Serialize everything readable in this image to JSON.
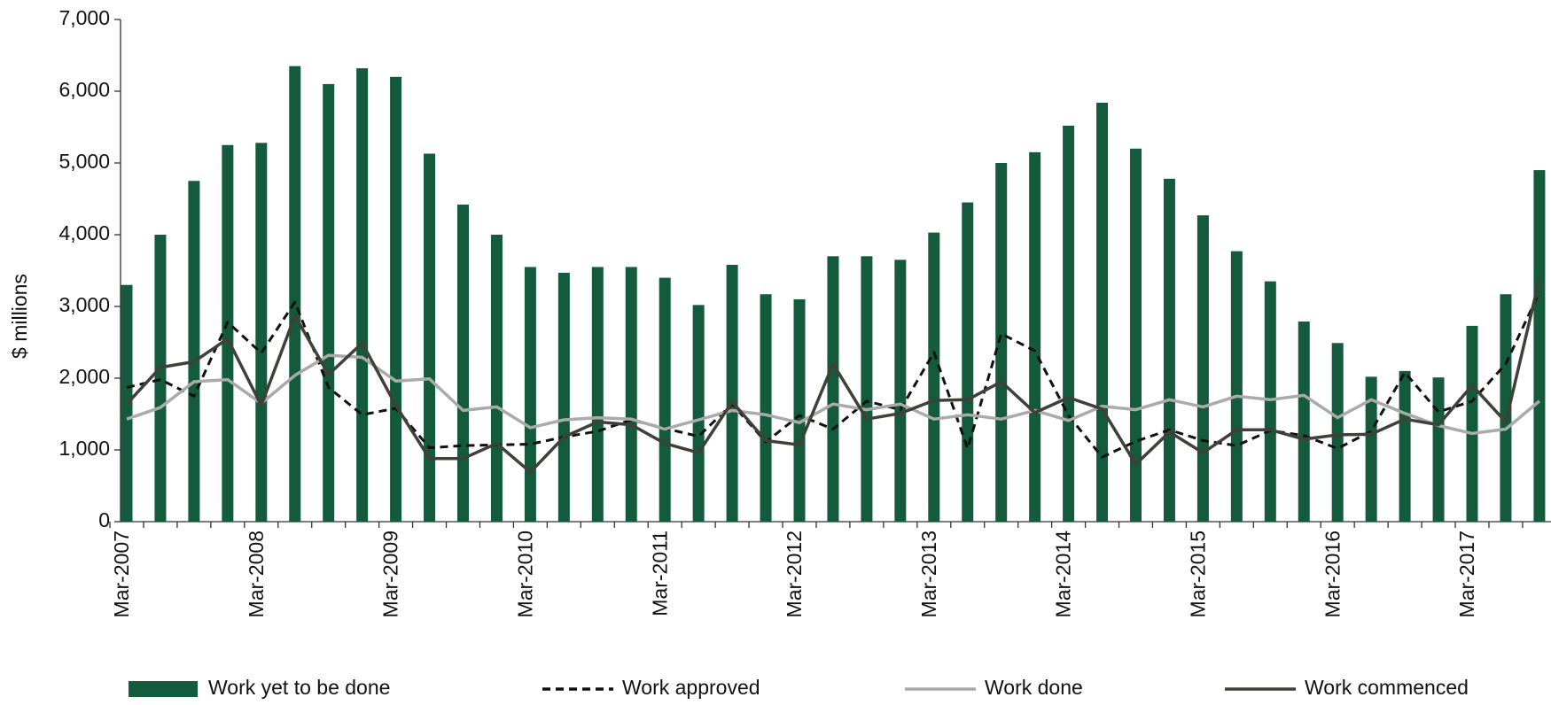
{
  "chart_data": {
    "type": "bar_line",
    "y_label": "$ millions",
    "categories": [
      "Mar-2007",
      null,
      null,
      null,
      "Mar-2008",
      null,
      null,
      null,
      "Mar-2009",
      null,
      null,
      null,
      "Mar-2010",
      null,
      null,
      null,
      "Mar-2011",
      null,
      null,
      null,
      "Mar-2012",
      null,
      null,
      null,
      "Mar-2013",
      null,
      null,
      null,
      "Mar-2014",
      null,
      null,
      null,
      "Mar-2015",
      null,
      null,
      null,
      "Mar-2016",
      null,
      null,
      null,
      "Mar-2017",
      null,
      null
    ],
    "ylim": [
      0,
      7000
    ],
    "yticks": [
      0,
      {
        "value": 1000,
        "label": "1,000"
      },
      {
        "value": 2000,
        "label": "2,000"
      },
      {
        "value": 3000,
        "label": "3,000"
      },
      {
        "value": 4000,
        "label": "4,000"
      },
      {
        "value": 5000,
        "label": "5,000"
      },
      {
        "value": 6000,
        "label": "6,000"
      },
      {
        "value": 7000,
        "label": "7,000"
      }
    ],
    "series": [
      {
        "name": "Work yet to be done",
        "kind": "bar",
        "color": "#145a3c",
        "values": [
          3300,
          4000,
          4750,
          5250,
          5280,
          6350,
          6100,
          6320,
          6200,
          5130,
          4420,
          4000,
          3550,
          3470,
          3550,
          3550,
          3400,
          3020,
          3580,
          3170,
          3100,
          3700,
          3700,
          3650,
          4030,
          4450,
          5000,
          5150,
          5520,
          5840,
          5200,
          4780,
          4270,
          3770,
          3350,
          2790,
          2490,
          2020,
          2100,
          2010,
          2730,
          3170,
          4900
        ]
      },
      {
        "name": "Work approved",
        "kind": "line",
        "dash": true,
        "color": "#111111",
        "values": [
          1870,
          1980,
          1750,
          2780,
          2350,
          3060,
          1870,
          1490,
          1580,
          1030,
          1060,
          1070,
          1080,
          1180,
          1260,
          1420,
          1300,
          1190,
          1640,
          1110,
          1480,
          1290,
          1680,
          1560,
          2360,
          1020,
          2620,
          2380,
          1480,
          900,
          1120,
          1280,
          1130,
          1060,
          1270,
          1200,
          1020,
          1260,
          2080,
          1530,
          1680,
          2200,
          3200
        ]
      },
      {
        "name": "Work done",
        "kind": "line",
        "dash": false,
        "color": "#aaaaaa",
        "values": [
          1430,
          1590,
          1950,
          1980,
          1650,
          2040,
          2320,
          2290,
          1960,
          1990,
          1550,
          1600,
          1310,
          1420,
          1450,
          1430,
          1290,
          1420,
          1550,
          1490,
          1380,
          1640,
          1560,
          1640,
          1430,
          1490,
          1430,
          1550,
          1410,
          1610,
          1560,
          1700,
          1600,
          1750,
          1700,
          1760,
          1450,
          1700,
          1510,
          1340,
          1230,
          1290,
          1680
        ]
      },
      {
        "name": "Work commenced",
        "kind": "line",
        "dash": false,
        "color": "#404038",
        "values": [
          1640,
          2150,
          2230,
          2550,
          1620,
          2870,
          2050,
          2490,
          1620,
          880,
          880,
          1090,
          690,
          1180,
          1390,
          1350,
          1090,
          960,
          1670,
          1130,
          1070,
          2200,
          1430,
          1510,
          1690,
          1700,
          1950,
          1520,
          1730,
          1570,
          800,
          1250,
          960,
          1280,
          1280,
          1150,
          1210,
          1220,
          1430,
          1350,
          1900,
          1390,
          3380
        ]
      }
    ]
  }
}
